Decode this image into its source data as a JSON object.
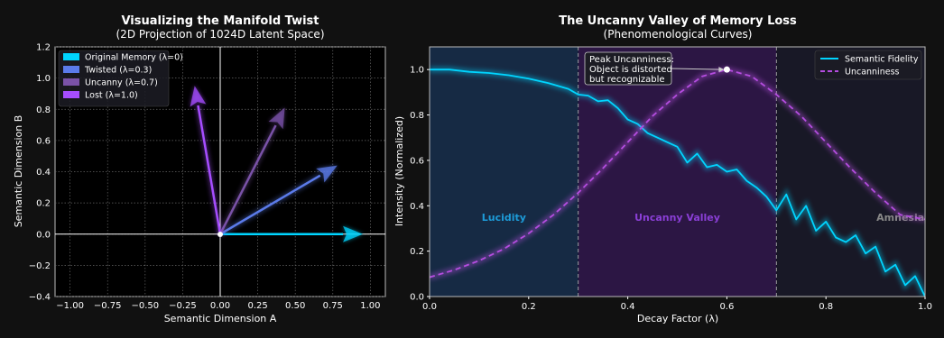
{
  "chart_data": [
    {
      "type": "vector",
      "title": "Visualizing the Manifold Twist",
      "subtitle": "(2D Projection of 1024D Latent Space)",
      "xlabel": "Semantic Dimension A",
      "ylabel": "Semantic Dimension B",
      "xlim": [
        -1.1,
        1.1
      ],
      "ylim": [
        -0.4,
        1.2
      ],
      "xticks": [
        "−1.00",
        "−0.75",
        "−0.50",
        "−0.25",
        "0.00",
        "0.25",
        "0.50",
        "0.75",
        "1.00"
      ],
      "yticks": [
        "−0.4",
        "−0.2",
        "0.0",
        "0.2",
        "0.4",
        "0.6",
        "0.8",
        "1.0",
        "1.2"
      ],
      "grid": true,
      "legend_position": "top-left",
      "vectors": [
        {
          "name": "Original Memory (λ=0)",
          "x": 0.95,
          "y": 0.0,
          "color": "#00d5ff"
        },
        {
          "name": "Twisted (λ=0.3)",
          "x": 0.78,
          "y": 0.44,
          "color": "#5b7bea"
        },
        {
          "name": "Uncanny (λ=0.7)",
          "x": 0.43,
          "y": 0.81,
          "color": "#7a52a8"
        },
        {
          "name": "Lost (λ=1.0)",
          "x": -0.17,
          "y": 0.95,
          "color": "#a64dff"
        }
      ]
    },
    {
      "type": "line",
      "title": "The Uncanny Valley of Memory Loss",
      "subtitle": "(Phenomenological Curves)",
      "xlabel": "Decay Factor (λ)",
      "ylabel": "Intensity (Normalized)",
      "xlim": [
        0,
        1
      ],
      "ylim": [
        0,
        1.1
      ],
      "xticks": [
        "0.0",
        "0.2",
        "0.4",
        "0.6",
        "0.8",
        "1.0"
      ],
      "yticks": [
        "0.0",
        "0.2",
        "0.4",
        "0.6",
        "0.8",
        "1.0"
      ],
      "legend_position": "top-right",
      "regions": [
        {
          "label": "Lucidity",
          "start": 0.0,
          "end": 0.3,
          "fill": "#162a44",
          "text_color": "#1d9bd8"
        },
        {
          "label": "Uncanny Valley",
          "start": 0.3,
          "end": 0.7,
          "fill": "#2c1644",
          "text_color": "#8a3fd6"
        },
        {
          "label": "Amnesia",
          "start": 0.7,
          "end": 1.0,
          "fill": "#181826",
          "text_color": "#888888"
        }
      ],
      "series": [
        {
          "name": "Semantic Fidelity",
          "color": "#00d5ff",
          "style": "solid",
          "x": [
            0,
            0.04,
            0.08,
            0.12,
            0.16,
            0.2,
            0.24,
            0.28,
            0.3,
            0.32,
            0.34,
            0.36,
            0.38,
            0.4,
            0.42,
            0.44,
            0.46,
            0.48,
            0.5,
            0.52,
            0.54,
            0.56,
            0.58,
            0.6,
            0.62,
            0.64,
            0.66,
            0.68,
            0.7,
            0.72,
            0.74,
            0.76,
            0.78,
            0.8,
            0.82,
            0.84,
            0.86,
            0.88,
            0.9,
            0.92,
            0.94,
            0.96,
            0.98,
            1.0
          ],
          "y": [
            1.0,
            1.0,
            0.99,
            0.985,
            0.975,
            0.96,
            0.94,
            0.915,
            0.89,
            0.885,
            0.86,
            0.865,
            0.83,
            0.78,
            0.76,
            0.72,
            0.7,
            0.68,
            0.66,
            0.59,
            0.63,
            0.57,
            0.58,
            0.55,
            0.56,
            0.51,
            0.48,
            0.44,
            0.38,
            0.45,
            0.34,
            0.4,
            0.29,
            0.33,
            0.26,
            0.24,
            0.27,
            0.19,
            0.22,
            0.11,
            0.14,
            0.05,
            0.09,
            0.0
          ]
        },
        {
          "name": "Uncanniness",
          "color": "#b54de0",
          "style": "dashed",
          "x": [
            0,
            0.05,
            0.1,
            0.15,
            0.2,
            0.25,
            0.3,
            0.35,
            0.4,
            0.45,
            0.5,
            0.55,
            0.6,
            0.65,
            0.7,
            0.75,
            0.8,
            0.85,
            0.9,
            0.95,
            1.0
          ],
          "y": [
            0.085,
            0.117,
            0.158,
            0.21,
            0.278,
            0.36,
            0.457,
            0.565,
            0.68,
            0.795,
            0.89,
            0.97,
            1.0,
            0.97,
            0.89,
            0.795,
            0.68,
            0.565,
            0.457,
            0.36,
            0.34
          ]
        }
      ],
      "annotation": {
        "lines": [
          "Peak Uncanniness:",
          "Object is distorted",
          "but recognizable"
        ],
        "x": 0.6,
        "y": 1.0
      }
    }
  ]
}
